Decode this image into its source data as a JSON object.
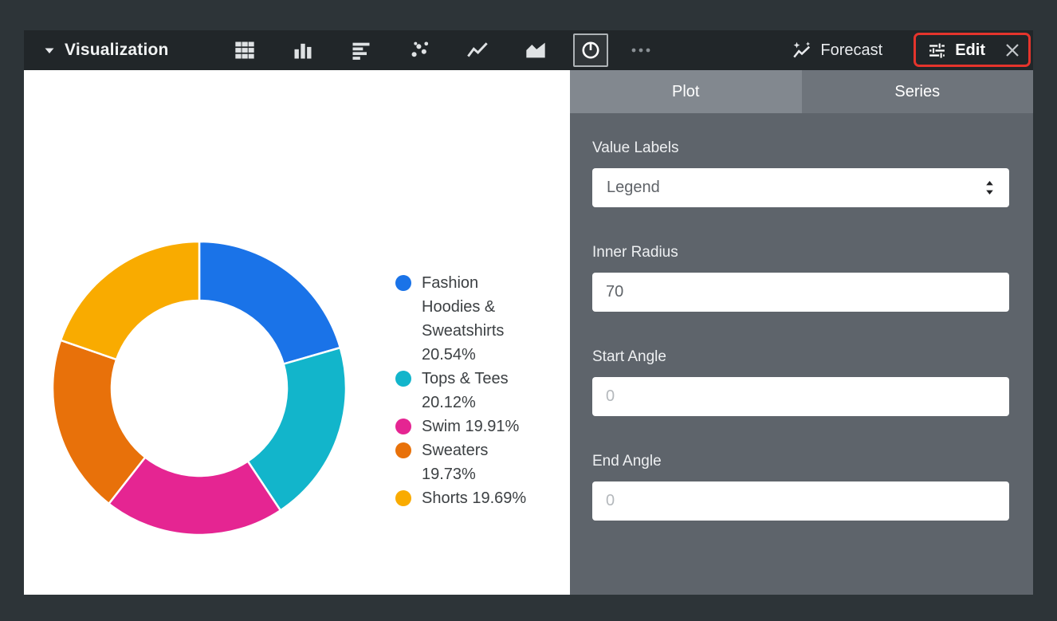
{
  "header": {
    "title": "Visualization",
    "viz_types": [
      {
        "name": "table"
      },
      {
        "name": "column"
      },
      {
        "name": "bar"
      },
      {
        "name": "scatter"
      },
      {
        "name": "line"
      },
      {
        "name": "area"
      },
      {
        "name": "pie",
        "selected": true
      }
    ],
    "forecast_label": "Forecast",
    "edit_label": "Edit"
  },
  "panel": {
    "tabs": [
      {
        "label": "Plot",
        "active": true
      },
      {
        "label": "Series",
        "active": false
      }
    ],
    "value_labels": {
      "label": "Value Labels",
      "value": "Legend"
    },
    "inner_radius": {
      "label": "Inner Radius",
      "value": "70"
    },
    "start_angle": {
      "label": "Start Angle",
      "placeholder": "0"
    },
    "end_angle": {
      "label": "End Angle",
      "placeholder": "0"
    }
  },
  "chart_data": {
    "type": "pie",
    "subtype": "donut",
    "labels": [
      "Fashion Hoodies & Sweatshirts",
      "Tops & Tees",
      "Swim",
      "Sweaters",
      "Shorts"
    ],
    "values": [
      20.54,
      20.12,
      19.91,
      19.73,
      19.69
    ],
    "colors": [
      "#1a73e8",
      "#12b5cb",
      "#e52592",
      "#e8710a",
      "#f9ab00"
    ],
    "legend_position": "right",
    "inner_radius_setting": 70,
    "start_angle_setting": 0,
    "end_angle_setting": 0
  },
  "annotation": {
    "color": "#e5342c",
    "highlighted_element": "Edit"
  }
}
